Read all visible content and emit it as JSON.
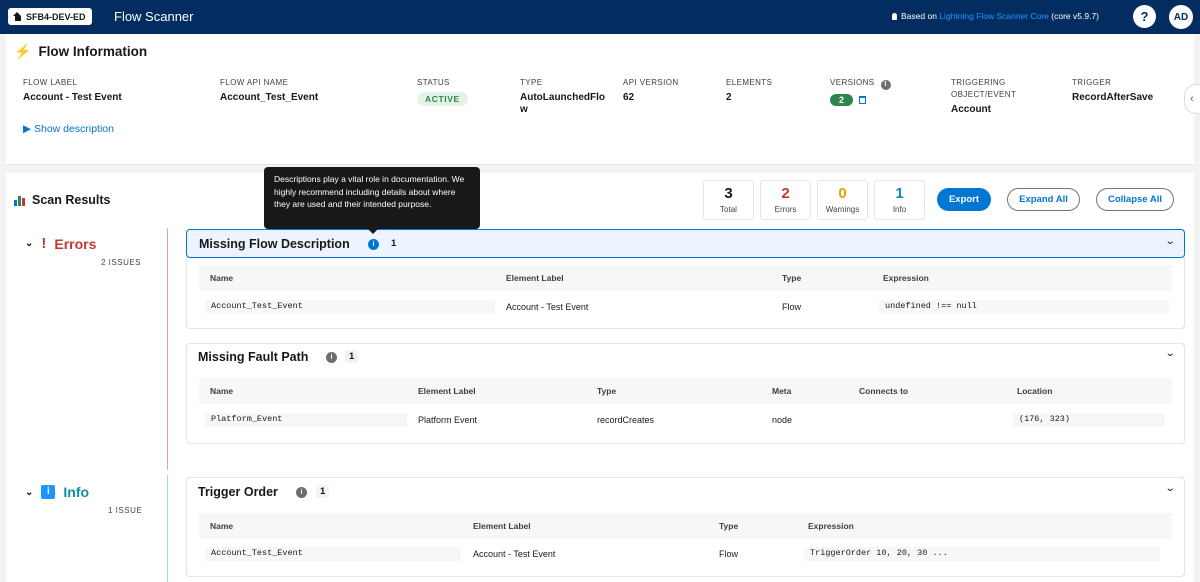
{
  "topbar": {
    "org": "SFB4-DEV-ED",
    "app_title": "Flow Scanner",
    "based_on_prefix": "Based on",
    "based_on_link": "Lightning Flow Scanner Core",
    "based_on_version": "(core v5.9.7)",
    "help": "?",
    "avatar": "AD"
  },
  "flow_info": {
    "title": "Flow Information",
    "fields": {
      "flow_label": {
        "label": "FLOW LABEL",
        "value": "Account - Test Event"
      },
      "api_name": {
        "label": "FLOW API NAME",
        "value": "Account_Test_Event"
      },
      "status": {
        "label": "STATUS",
        "value": "ACTIVE"
      },
      "type": {
        "label": "TYPE",
        "value": "AutoLaunchedFlow"
      },
      "api_version": {
        "label": "API VERSION",
        "value": "62"
      },
      "elements": {
        "label": "ELEMENTS",
        "value": "2"
      },
      "versions": {
        "label": "VERSIONS",
        "value": "2"
      },
      "triggering_object": {
        "label": "TRIGGERING OBJECT/EVENT",
        "value": "Account"
      },
      "trigger": {
        "label": "TRIGGER",
        "value": "RecordAfterSave"
      }
    },
    "show_description": "Show description"
  },
  "scan": {
    "title": "Scan Results",
    "stats": [
      {
        "value": "3",
        "label": "Total",
        "color": "#181818"
      },
      {
        "value": "2",
        "label": "Errors",
        "color": "#c23934"
      },
      {
        "value": "0",
        "label": "Warnings",
        "color": "#e4a201"
      },
      {
        "value": "1",
        "label": "Info",
        "color": "#0b8fa5"
      }
    ],
    "export_label": "Export",
    "expand_all_label": "Expand All",
    "collapse_all_label": "Collapse All",
    "errors_group": {
      "icon": "!",
      "label": "Errors",
      "count": "2 ISSUES",
      "color": "#c23934"
    },
    "info_group": {
      "icon": "i",
      "label": "Info",
      "count": "1 ISSUE",
      "color": "#0b8fa5"
    },
    "rules": {
      "missing_description": {
        "name": "Missing Flow Description",
        "count": "1",
        "headers": [
          "Name",
          "Element Label",
          "Type",
          "Expression"
        ],
        "row": [
          "Account_Test_Event",
          "Account - Test Event",
          "Flow",
          "undefined !== null"
        ]
      },
      "missing_fault": {
        "name": "Missing Fault Path",
        "count": "1",
        "headers": [
          "Name",
          "Element Label",
          "Type",
          "Meta",
          "Connects to",
          "Location"
        ],
        "row": [
          "Platform_Event",
          "Platform Event",
          "recordCreates",
          "node",
          "",
          "(176, 323)"
        ]
      },
      "trigger_order": {
        "name": "Trigger Order",
        "count": "1",
        "headers": [
          "Name",
          "Element Label",
          "Type",
          "Expression"
        ],
        "row": [
          "Account_Test_Event",
          "Account - Test Event",
          "Flow",
          "TriggerOrder 10, 20, 30 ..."
        ]
      }
    }
  },
  "tooltip": "Descriptions play a vital role in documentation. We highly recommend including details about where they are used and their intended purpose."
}
